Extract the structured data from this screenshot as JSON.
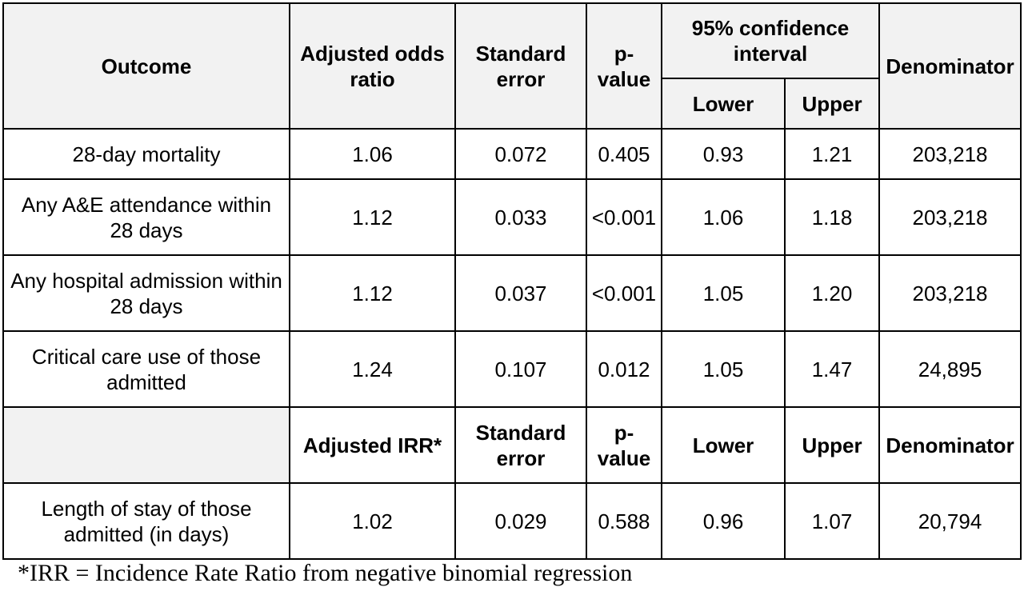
{
  "header": {
    "outcome": "Outcome",
    "adjusted_odds_ratio": "Adjusted odds ratio",
    "standard_error": "Standard error",
    "p_value": "p-value",
    "ci": "95% confidence interval",
    "lower": "Lower",
    "upper": "Upper",
    "denominator": "Denominator"
  },
  "rows": [
    {
      "outcome": "28-day mortality",
      "ratio": "1.06",
      "se": "0.072",
      "p": "0.405",
      "lower": "0.93",
      "upper": "1.21",
      "denominator": "203,218"
    },
    {
      "outcome": "Any A&E attendance within 28 days",
      "ratio": "1.12",
      "se": "0.033",
      "p": "<0.001",
      "lower": "1.06",
      "upper": "1.18",
      "denominator": "203,218"
    },
    {
      "outcome": "Any hospital admission within 28 days",
      "ratio": "1.12",
      "se": "0.037",
      "p": "<0.001",
      "lower": "1.05",
      "upper": "1.20",
      "denominator": "203,218"
    },
    {
      "outcome": "Critical care use of those admitted",
      "ratio": "1.24",
      "se": "0.107",
      "p": "0.012",
      "lower": "1.05",
      "upper": "1.47",
      "denominator": "24,895"
    }
  ],
  "subheader": {
    "outcome": "",
    "adjusted_irr": "Adjusted IRR*",
    "standard_error": "Standard error",
    "p_value": "p-value",
    "lower": "Lower",
    "upper": "Upper",
    "denominator": "Denominator"
  },
  "irr_rows": [
    {
      "outcome": "Length of stay of those admitted (in days)",
      "ratio": "1.02",
      "se": "0.029",
      "p": "0.588",
      "lower": "0.96",
      "upper": "1.07",
      "denominator": "20,794"
    }
  ],
  "footnote": "*IRR = Incidence Rate Ratio from negative binomial regression"
}
